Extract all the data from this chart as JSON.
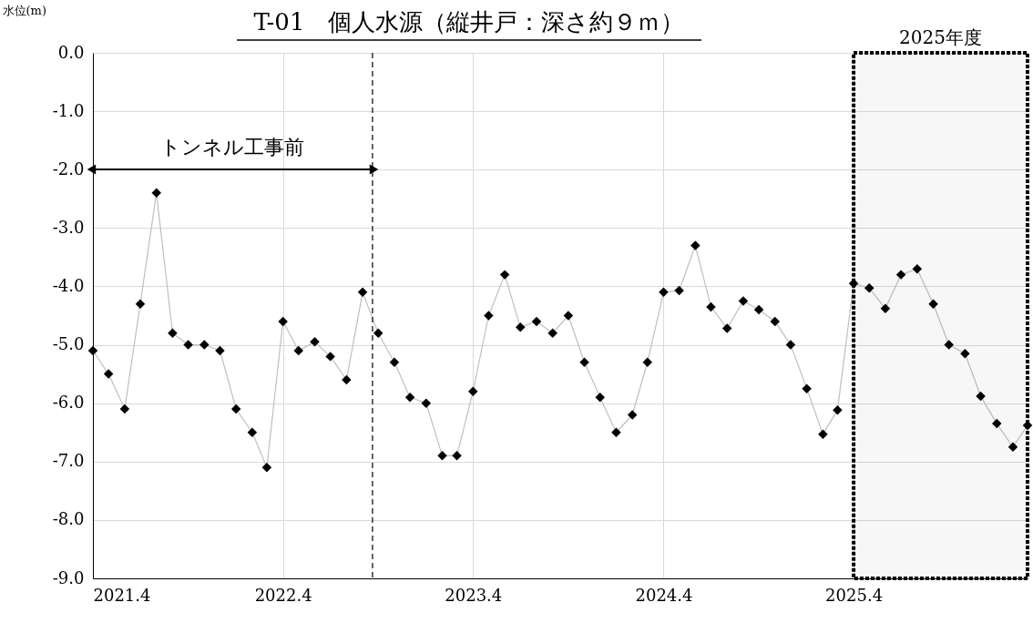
{
  "chart_data": {
    "type": "line",
    "title": "T-01　個人水源（縦井戸：深さ約９ｍ）",
    "ylabel": "水位(m)",
    "x": [
      "2021-04",
      "2021-05",
      "2021-06",
      "2021-07",
      "2021-08",
      "2021-09",
      "2021-10",
      "2021-11",
      "2021-12",
      "2022-01",
      "2022-02",
      "2022-03",
      "2022-04",
      "2022-05",
      "2022-06",
      "2022-07",
      "2022-08",
      "2022-09",
      "2022-10",
      "2022-11",
      "2022-12",
      "2023-01",
      "2023-02",
      "2023-03",
      "2023-04",
      "2023-05",
      "2023-06",
      "2023-07",
      "2023-08",
      "2023-09",
      "2023-10",
      "2023-11",
      "2023-12",
      "2024-01",
      "2024-02",
      "2024-03",
      "2024-04",
      "2024-05",
      "2024-06",
      "2024-07",
      "2024-08",
      "2024-09",
      "2024-10",
      "2024-11",
      "2024-12",
      "2025-01",
      "2025-02",
      "2025-03",
      "2025-04",
      "2025-05",
      "2025-06",
      "2025-07",
      "2025-08",
      "2025-09",
      "2025-10",
      "2025-11",
      "2025-12",
      "2026-01",
      "2026-02",
      "2026-03"
    ],
    "series": [
      {
        "color": "#000000",
        "values": [
          -5.1,
          -5.5,
          -6.1,
          -4.3,
          -2.4,
          -4.8,
          -5.0,
          -5.0,
          -5.1,
          -6.1,
          -6.5,
          -7.1,
          -4.6,
          -5.1,
          -4.95,
          -5.2,
          -5.6,
          -4.1,
          -4.8,
          -5.3,
          -5.9,
          -6.0,
          -6.9,
          -6.9,
          -5.8,
          -4.5,
          -3.8,
          -4.7,
          -4.6,
          -4.8,
          -4.5,
          -5.3,
          -5.9,
          -6.5,
          -6.2,
          -5.3,
          -4.1,
          -4.07,
          -3.3,
          -4.35,
          -4.72,
          -4.25,
          -4.4,
          -4.6,
          -5.0,
          -5.75,
          -6.53,
          -6.12,
          -3.95,
          -4.03,
          -4.38,
          -3.8,
          -3.7,
          -4.3,
          -5.0,
          -5.15,
          -5.88,
          -6.35,
          -6.75,
          -6.38
        ]
      }
    ],
    "xlim": [
      "2021-04",
      "2026-03"
    ],
    "xticks": [
      {
        "value": "2021-04",
        "label": "2021.4"
      },
      {
        "value": "2022-04",
        "label": "2022.4"
      },
      {
        "value": "2023-04",
        "label": "2023.4"
      },
      {
        "value": "2024-04",
        "label": "2024.4"
      },
      {
        "value": "2025-04",
        "label": "2025.4"
      }
    ],
    "ylim": [
      -9,
      0
    ],
    "yticks": [
      {
        "value": 0,
        "label": "0.0"
      },
      {
        "value": -1,
        "label": "-1.0"
      },
      {
        "value": -2,
        "label": "-2.0"
      },
      {
        "value": -3,
        "label": "-3.0"
      },
      {
        "value": -4,
        "label": "-4.0"
      },
      {
        "value": -5,
        "label": "-5.0"
      },
      {
        "value": -6,
        "label": "-6.0"
      },
      {
        "value": -7,
        "label": "-7.0"
      },
      {
        "value": -8,
        "label": "-8.0"
      },
      {
        "value": -9,
        "label": "-9.0"
      }
    ],
    "ref_lines": [
      {
        "axis": "x",
        "value": "2022-09-20",
        "line_style": "dashed",
        "color": "#000000"
      }
    ],
    "bands": [
      {
        "axis": "x",
        "from": "2025-04",
        "to": "2026-03",
        "label": "2025年度",
        "color": "#000000"
      }
    ],
    "annotations": [
      "トンネル工事前"
    ],
    "grid": true,
    "marker": "diamond",
    "line_style": "solid"
  }
}
